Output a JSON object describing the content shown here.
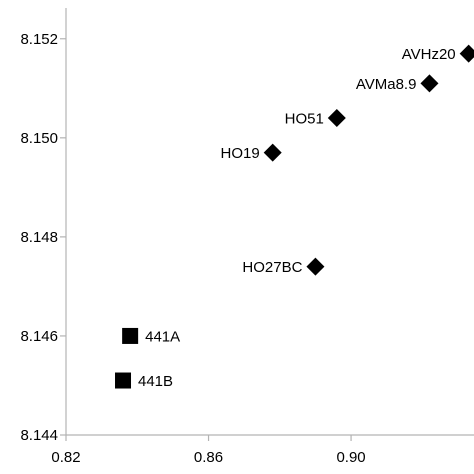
{
  "chart_data": {
    "type": "scatter",
    "title": "",
    "xlabel": "",
    "ylabel": "",
    "xlim": [
      0.82,
      0.9345
    ],
    "ylim": [
      8.144,
      8.1525
    ],
    "xticks": [
      0.82,
      0.86,
      0.9
    ],
    "xtick_labels": [
      "0.82",
      "0.86",
      "0.90"
    ],
    "yticks": [
      8.144,
      8.146,
      8.148,
      8.15,
      8.152
    ],
    "ytick_labels": [
      "8.144",
      "8.146",
      "8.148",
      "8.150",
      "8.152"
    ],
    "grid": false,
    "legend": "none",
    "points": [
      {
        "label": "AVHz20",
        "x": 0.933,
        "y": 8.1517,
        "marker": "diamond"
      },
      {
        "label": "AVMa8.9",
        "x": 0.922,
        "y": 8.1511,
        "marker": "diamond"
      },
      {
        "label": "HO51",
        "x": 0.896,
        "y": 8.1504,
        "marker": "diamond"
      },
      {
        "label": "HO19",
        "x": 0.878,
        "y": 8.1497,
        "marker": "diamond"
      },
      {
        "label": "HO27BC",
        "x": 0.89,
        "y": 8.1474,
        "marker": "diamond"
      },
      {
        "label": "441A",
        "x": 0.838,
        "y": 8.146,
        "marker": "square"
      },
      {
        "label": "441B",
        "x": 0.836,
        "y": 8.1451,
        "marker": "square"
      }
    ],
    "marker_color": "#000000",
    "axis_color": "#b3b3b3"
  }
}
